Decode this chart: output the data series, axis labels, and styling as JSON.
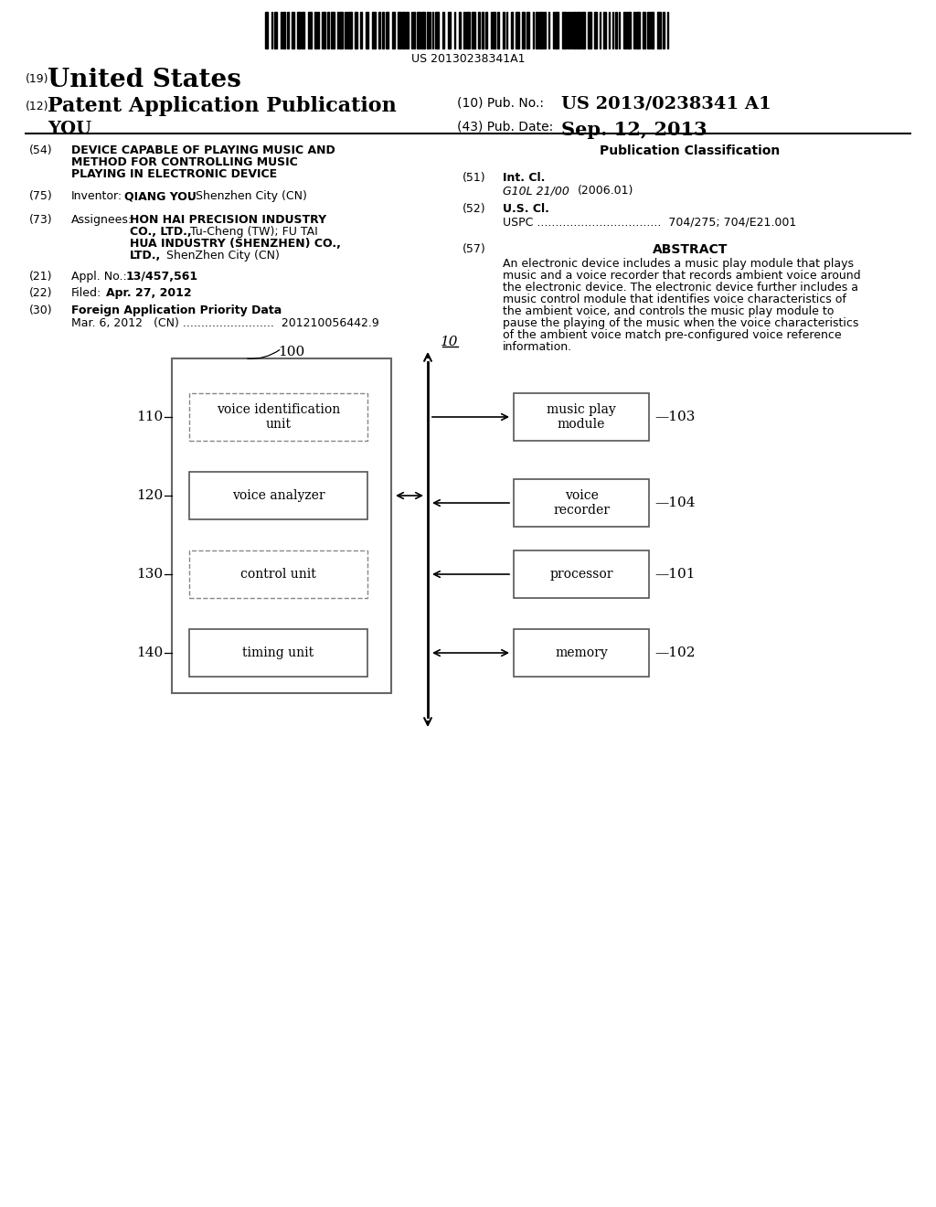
{
  "bg_color": "#ffffff",
  "barcode_text": "US 20130238341A1",
  "patent_number": "US 2013/0238341 A1",
  "pub_date": "Sep. 12, 2013",
  "inventor_name": "YOU",
  "field54_text_line1": "DEVICE CAPABLE OF PLAYING MUSIC AND",
  "field54_text_line2": "METHOD FOR CONTROLLING MUSIC",
  "field54_text_line3": "PLAYING IN ELECTRONIC DEVICE",
  "field75_inventor": "QIANG YOU",
  "field75_rest": ", Shenzhen City (CN)",
  "field73_line1_bold": "HON HAI PRECISION INDUSTRY",
  "field73_line2_bold": "CO., LTD.,",
  "field73_line2_rest": " Tu-Cheng (TW); FU TAI",
  "field73_line3_bold": "HUA INDUSTRY (SHENZHEN) CO.,",
  "field73_line4_bold": "LTD.,",
  "field73_line4_rest": " ShenZhen City (CN)",
  "field21_appl": "13/457,561",
  "field22_date": "Apr. 27, 2012",
  "field30_text": "Foreign Application Priority Data",
  "field30_sub": "Mar. 6, 2012   (CN) .........................  201210056442.9",
  "pub_class_header": "Publication Classification",
  "field51_sub1": "G10L 21/00",
  "field51_sub2": "          (2006.01)",
  "field52_sub": "USPC ..................................  704/275; 704/E21.001",
  "abstract_lines": [
    "An electronic device includes a music play module that plays",
    "music and a voice recorder that records ambient voice around",
    "the electronic device. The electronic device further includes a",
    "music control module that identifies voice characteristics of",
    "the ambient voice, and controls the music play module to",
    "pause the playing of the music when the voice characteristics",
    "of the ambient voice match pre-configured voice reference",
    "information."
  ],
  "diagram_label": "10",
  "box100_label": "100",
  "box110_label": "110",
  "box110_text": "voice identification\nunit",
  "box120_label": "120",
  "box120_text": "voice analyzer",
  "box130_label": "130",
  "box130_text": "control unit",
  "box140_label": "140",
  "box140_text": "timing unit",
  "box103_label": "103",
  "box103_text": "music play\nmodule",
  "box104_label": "104",
  "box104_text": "voice\nrecorder",
  "box101_label": "101",
  "box101_text": "processor",
  "box102_label": "102",
  "box102_text": "memory"
}
